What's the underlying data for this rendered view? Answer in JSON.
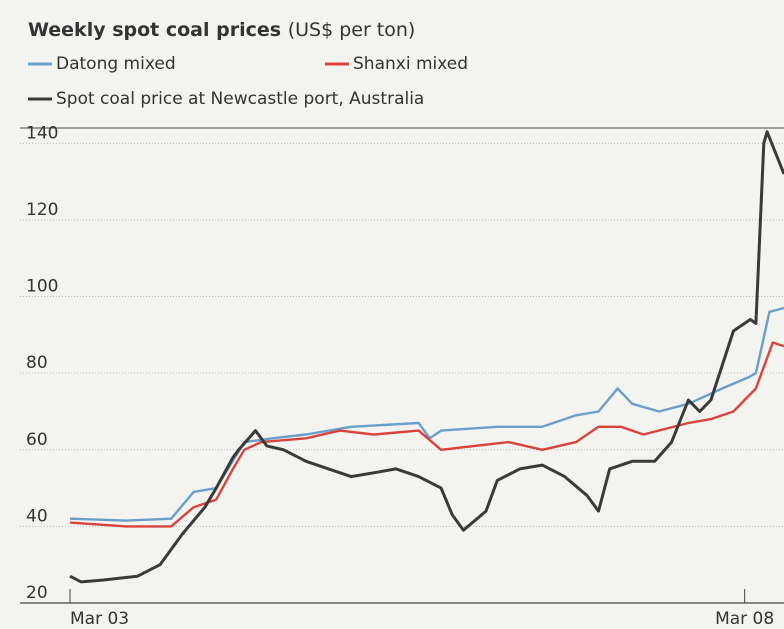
{
  "chart_data": {
    "type": "line",
    "title": "Weekly spot coal prices",
    "subtitle": "(US$ per ton)",
    "xlim": [
      0,
      63.5
    ],
    "xticks": [
      {
        "value": 0,
        "label": "Mar 03"
      },
      {
        "value": 60,
        "label": "Mar 08"
      }
    ],
    "ylim": [
      20,
      144
    ],
    "yticks": [
      20,
      40,
      60,
      80,
      100,
      120,
      140
    ],
    "grid": true,
    "series": [
      {
        "name": "Datong mixed",
        "color": "#6a9fcb",
        "x": [
          0,
          5,
          9,
          11,
          13,
          15.5,
          18,
          21,
          25,
          31,
          32,
          33,
          38,
          42,
          45,
          47,
          48.7,
          50,
          52.4,
          55,
          58,
          60.4,
          61,
          62.2,
          63.5
        ],
        "values": [
          42,
          41.5,
          42,
          49,
          50,
          62,
          63,
          64,
          66,
          67,
          63,
          65,
          66,
          66,
          69,
          70,
          76,
          72,
          70,
          72,
          76,
          79,
          80,
          96,
          97
        ]
      },
      {
        "name": "Shanxi mixed",
        "color": "#d9433b",
        "x": [
          0,
          5,
          9,
          11,
          13,
          14.5,
          15.5,
          17,
          21,
          24,
          27,
          31,
          33,
          36,
          39,
          42,
          45,
          47,
          49,
          51,
          55,
          57,
          59,
          61,
          62.5,
          63.5
        ],
        "values": [
          41,
          40,
          40,
          45,
          47,
          55,
          60,
          62,
          63,
          65,
          64,
          65,
          60,
          61,
          62,
          60,
          62,
          66,
          66,
          64,
          67,
          68,
          70,
          76,
          88,
          87
        ]
      },
      {
        "name": "Spot coal price at Newcastle port, Australia",
        "color": "#3a3a3a",
        "x": [
          0,
          1,
          3,
          6,
          8,
          10,
          12,
          13,
          14.5,
          15,
          16.5,
          17.5,
          19,
          21,
          23,
          25,
          27,
          29,
          31,
          33,
          34,
          35,
          37,
          38,
          40,
          42,
          44,
          46,
          47,
          48,
          50,
          52,
          53.5,
          55,
          56,
          57,
          58,
          59,
          60.5,
          61,
          61.7,
          62,
          63.5
        ],
        "values": [
          27,
          25.5,
          26,
          27,
          30,
          38,
          45,
          50,
          58,
          60,
          65,
          61,
          60,
          57,
          55,
          53,
          54,
          55,
          53,
          50,
          43,
          39,
          44,
          52,
          55,
          56,
          53,
          48,
          44,
          55,
          57,
          57,
          62,
          73,
          70,
          73,
          82,
          91,
          94,
          93,
          140,
          143,
          132
        ]
      }
    ]
  }
}
